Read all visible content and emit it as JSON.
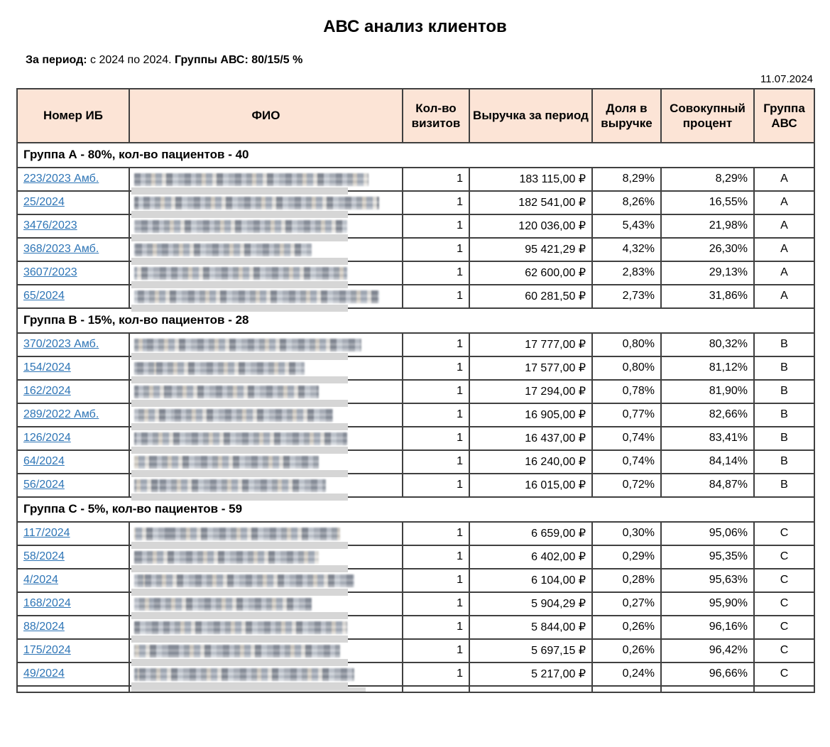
{
  "title": "АВС анализ клиентов",
  "subtitle": {
    "period_label": "За период:",
    "period_value": "с 2024 по 2024.",
    "abc_label": "Группы АВС:",
    "abc_value": "80/15/5 %"
  },
  "report_date": "11.07.2024",
  "table": {
    "headers": [
      "Номер ИБ",
      "ФИО",
      "Кол-во визитов",
      "Выручка за период",
      "Доля в выручке",
      "Совокупный процент",
      "Группа АВС"
    ],
    "fio_redacted": true,
    "groups": [
      {
        "label": "Группа А - 80%, кол-во пациентов - 40",
        "rows": [
          {
            "case": "223/2023 Амб.",
            "visits": "1",
            "revenue": "183 115,00 ₽",
            "share": "8,29%",
            "cumulative": "8,29%",
            "abc": "A"
          },
          {
            "case": "25/2024",
            "visits": "1",
            "revenue": "182 541,00 ₽",
            "share": "8,26%",
            "cumulative": "16,55%",
            "abc": "A"
          },
          {
            "case": "3476/2023",
            "visits": "1",
            "revenue": "120 036,00 ₽",
            "share": "5,43%",
            "cumulative": "21,98%",
            "abc": "A"
          },
          {
            "case": "368/2023 Амб.",
            "visits": "1",
            "revenue": "95 421,29 ₽",
            "share": "4,32%",
            "cumulative": "26,30%",
            "abc": "A"
          },
          {
            "case": "3607/2023",
            "visits": "1",
            "revenue": "62 600,00 ₽",
            "share": "2,83%",
            "cumulative": "29,13%",
            "abc": "A"
          },
          {
            "case": "65/2024",
            "visits": "1",
            "revenue": "60 281,50 ₽",
            "share": "2,73%",
            "cumulative": "31,86%",
            "abc": "A"
          }
        ]
      },
      {
        "label": "Группа В - 15%, кол-во пациентов - 28",
        "rows": [
          {
            "case": "370/2023 Амб.",
            "visits": "1",
            "revenue": "17 777,00 ₽",
            "share": "0,80%",
            "cumulative": "80,32%",
            "abc": "B"
          },
          {
            "case": "154/2024",
            "visits": "1",
            "revenue": "17 577,00 ₽",
            "share": "0,80%",
            "cumulative": "81,12%",
            "abc": "B"
          },
          {
            "case": "162/2024",
            "visits": "1",
            "revenue": "17 294,00 ₽",
            "share": "0,78%",
            "cumulative": "81,90%",
            "abc": "B"
          },
          {
            "case": "289/2022 Амб.",
            "visits": "1",
            "revenue": "16 905,00 ₽",
            "share": "0,77%",
            "cumulative": "82,66%",
            "abc": "B"
          },
          {
            "case": "126/2024",
            "visits": "1",
            "revenue": "16 437,00 ₽",
            "share": "0,74%",
            "cumulative": "83,41%",
            "abc": "B"
          },
          {
            "case": "64/2024",
            "visits": "1",
            "revenue": "16 240,00 ₽",
            "share": "0,74%",
            "cumulative": "84,14%",
            "abc": "B"
          },
          {
            "case": "56/2024",
            "visits": "1",
            "revenue": "16 015,00 ₽",
            "share": "0,72%",
            "cumulative": "84,87%",
            "abc": "B"
          }
        ]
      },
      {
        "label": "Группа С - 5%, кол-во пациентов - 59",
        "rows": [
          {
            "case": "117/2024",
            "visits": "1",
            "revenue": "6 659,00 ₽",
            "share": "0,30%",
            "cumulative": "95,06%",
            "abc": "C"
          },
          {
            "case": "58/2024",
            "visits": "1",
            "revenue": "6 402,00 ₽",
            "share": "0,29%",
            "cumulative": "95,35%",
            "abc": "C"
          },
          {
            "case": "4/2024",
            "visits": "1",
            "revenue": "6 104,00 ₽",
            "share": "0,28%",
            "cumulative": "95,63%",
            "abc": "C"
          },
          {
            "case": "168/2024",
            "visits": "1",
            "revenue": "5 904,29 ₽",
            "share": "0,27%",
            "cumulative": "95,90%",
            "abc": "C"
          },
          {
            "case": "88/2024",
            "visits": "1",
            "revenue": "5 844,00 ₽",
            "share": "0,26%",
            "cumulative": "96,16%",
            "abc": "C"
          },
          {
            "case": "175/2024",
            "visits": "1",
            "revenue": "5 697,15 ₽",
            "share": "0,26%",
            "cumulative": "96,42%",
            "abc": "C"
          },
          {
            "case": "49/2024",
            "visits": "1",
            "revenue": "5 217,00 ₽",
            "share": "0,24%",
            "cumulative": "96,66%",
            "abc": "C"
          }
        ]
      }
    ]
  },
  "colors": {
    "header_bg": "#fce4d6",
    "border": "#404040",
    "link": "#2e75b6",
    "redaction_bar": "#d6d6d6"
  }
}
